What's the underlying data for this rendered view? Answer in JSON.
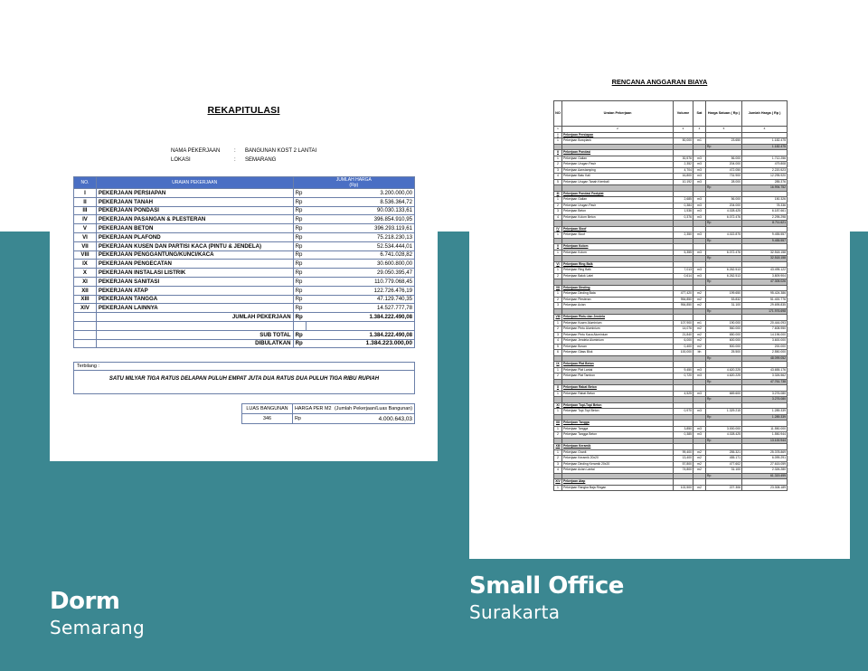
{
  "background": {
    "top": "#ffffff",
    "band": "#3b8791"
  },
  "doc1": {
    "title": "REKAPITULASI",
    "info": [
      {
        "key": "NAMA PEKERJAAN",
        "sep": ":",
        "value": "BANGUNAN KOST 2 LANTAI"
      },
      {
        "key": "LOKASI",
        "sep": ":",
        "value": "SEMARANG"
      }
    ],
    "headers": {
      "no": "NO.",
      "desc": "URAIAN PEKERJAAN",
      "amount": "JUMLAH HARGA",
      "amount_unit": "(Rp)"
    },
    "items": [
      {
        "no": "I",
        "desc": "PEKERJAAN PERSIAPAN",
        "rp": "Rp",
        "value": "3.200.000,00"
      },
      {
        "no": "II",
        "desc": "PEKERJAAN TANAH",
        "rp": "Rp",
        "value": "8.536.364,72"
      },
      {
        "no": "III",
        "desc": "PEKERJAAN PONDASI",
        "rp": "Rp",
        "value": "90.030.133,61"
      },
      {
        "no": "IV",
        "desc": "PEKERJAAN PASANGAN & PLESTERAN",
        "rp": "Rp",
        "value": "396.854.910,95"
      },
      {
        "no": "V",
        "desc": "PEKERJAAN BETON",
        "rp": "Rp",
        "value": "396.293.119,61"
      },
      {
        "no": "VI",
        "desc": "PEKERJAAN PLAFOND",
        "rp": "Rp",
        "value": "75.218.230,13"
      },
      {
        "no": "VII",
        "desc": "PEKERJAAN KUSEN DAN PARTISI KACA (PINTU & JENDELA)",
        "rp": "Rp",
        "value": "52.534.444,01"
      },
      {
        "no": "VIII",
        "desc": "PEKERJAAN PENGGANTUNG/KUNCI/KACA",
        "rp": "Rp",
        "value": "6.741.028,82"
      },
      {
        "no": "IX",
        "desc": "PEKERJAAN PENGECATAN",
        "rp": "Rp",
        "value": "30.600.800,00"
      },
      {
        "no": "X",
        "desc": "PEKERJAAN INSTALASI LISTRIK",
        "rp": "Rp",
        "value": "29.050.395,47"
      },
      {
        "no": "XI",
        "desc": "PEKERJAAN SANITASI",
        "rp": "Rp",
        "value": "110.779.068,45"
      },
      {
        "no": "XII",
        "desc": "PEKERJAAN ATAP",
        "rp": "Rp",
        "value": "122.726.476,19"
      },
      {
        "no": "XIII",
        "desc": "PEKERJAAN TANGGA",
        "rp": "Rp",
        "value": "47.129.740,35"
      },
      {
        "no": "XIV",
        "desc": "PEKERJAAN LAINNYA",
        "rp": "Rp",
        "value": "14.527.777,78"
      }
    ],
    "jumlah_label": "JUMLAH PEKERJAAN",
    "jumlah_rp": "Rp",
    "jumlah_value": "1.384.222.490,08",
    "subtotal_label": "SUB TOTAL",
    "subtotal_rp": "Rp",
    "subtotal_value": "1.384.222.490,08",
    "dibulatkan_label": "DIBULATKAN",
    "dibulatkan_rp": "Rp",
    "dibulatkan_value": "1.384.223.000,00",
    "terbilang_label": "Terbilang :",
    "terbilang_text": "SATU MILYAR TIGA RATUS DELAPAN PULUH EMPAT JUTA DUA RATUS DUA PULUH TIGA RIBU RUPIAH",
    "luas_label": "LUAS BANGUNAN",
    "luas_value": "346",
    "harga_m2_label": "HARGA PER M2",
    "harga_m2_note": "(Jumlah Pekerjaan/Luas Bangunan)",
    "harga_m2_rp": "Rp",
    "harga_m2_value": "4.000.643,03"
  },
  "doc2": {
    "title": "RENCANA ANGGARAN BIAYA",
    "headers": [
      "NO",
      "Uraian Pekerjaan",
      "Volume",
      "Sat",
      "Harga Satuan ( Rp )",
      "Jumlah Harga ( Rp )"
    ],
    "col_index": [
      "1",
      "2",
      "3",
      "4",
      "5",
      "6"
    ],
    "rows": [
      {
        "t": "sec",
        "no": "I",
        "d": "Pekerjaan Persiapan"
      },
      {
        "t": "item",
        "no": "1",
        "d": "Pekerjaan Bowplank",
        "v": "50,000",
        "s": "m1",
        "p": "23.650",
        "j": "1.182.475"
      },
      {
        "t": "sub",
        "j": "1.182.475"
      },
      {
        "t": "sec",
        "no": "II",
        "d": "Pekerjaan Pondasi"
      },
      {
        "t": "item",
        "no": "1",
        "d": "Pekerjaan Galian",
        "v": "30,576",
        "s": "m3",
        "p": "56.000",
        "j": "1.712.256"
      },
      {
        "t": "item",
        "no": "2",
        "d": "Pekerjaan Urugan Pasir",
        "v": "2,352",
        "s": "m3",
        "p": "204.000",
        "j": "479.808"
      },
      {
        "t": "item",
        "no": "3",
        "d": "Pekerjaan Aanstamping",
        "v": "4,704",
        "s": "m3",
        "p": "472.050",
        "j": "2.220.523"
      },
      {
        "t": "item",
        "no": "4",
        "d": "Pekerjaan Batu Kali",
        "v": "16,800",
        "s": "m3",
        "p": "731.900",
        "j": "12.295.920"
      },
      {
        "t": "item",
        "no": "5",
        "d": "Pekerjaan Urugan Tanah Kembali",
        "v": "10,192",
        "s": "m3",
        "p": "28.000",
        "j": "285.376"
      },
      {
        "t": "sub",
        "j": "16.994.752"
      },
      {
        "t": "sec",
        "no": "III",
        "d": "Pekerjaan Pondasi Footplat"
      },
      {
        "t": "item",
        "no": "1",
        "d": "Pekerjaan Galian",
        "v": "2,685",
        "s": "m3",
        "p": "56.000",
        "j": "150.326"
      },
      {
        "t": "item",
        "no": "2",
        "d": "Pekerjaan Urugan Pasir",
        "v": "0,384",
        "s": "m3",
        "p": "204.000",
        "j": "78.336"
      },
      {
        "t": "item",
        "no": "3",
        "d": "Pekerjaan Beton",
        "v": "1,536",
        "s": "m3",
        "p": "4.028.425",
        "j": "6.187.661"
      },
      {
        "t": "item",
        "no": "4",
        "d": "Pekerjaan Kolom Beton",
        "v": "0,376",
        "s": "m3",
        "p": "6.072.476",
        "j": "2.295.298"
      },
      {
        "t": "sub",
        "j": "8.711.621"
      },
      {
        "t": "sec",
        "no": "IV",
        "d": "Pekerjaan Sloof"
      },
      {
        "t": "item",
        "no": "1",
        "d": "Pekerjaan Sloof",
        "v": "2,350",
        "s": "m3",
        "p": "4.022.875",
        "j": "9.455.557"
      },
      {
        "t": "sub",
        "j": "9.455.557"
      },
      {
        "t": "sec",
        "no": "V",
        "d": "Pekerjaan Kolom"
      },
      {
        "t": "item",
        "no": "1",
        "d": "Pekerjaan Kolom",
        "v": "5,355",
        "s": "m3",
        "p": "6.072.476",
        "j": "32.518.158"
      },
      {
        "t": "sub",
        "j": "32.518.158"
      },
      {
        "t": "sec",
        "no": "VI",
        "d": "Pekerjaan Ring Balk"
      },
      {
        "t": "item",
        "no": "1",
        "d": "Pekerjaan Ring Balk",
        "v": "7,013",
        "s": "m3",
        "p": "6.262.513",
        "j": "43.495.122"
      },
      {
        "t": "item",
        "no": "2",
        "d": "Pekerjaan Balok Latei",
        "v": "0,614",
        "s": "m3",
        "p": "6.262.513",
        "j": "3.809.904"
      },
      {
        "t": "sub",
        "j": "47.305.026"
      },
      {
        "t": "sec",
        "no": "VII",
        "d": "Pekerjaan Dinding"
      },
      {
        "t": "item",
        "no": "1",
        "d": "Pekerjaan Dinding Bata",
        "v": "477,420",
        "s": "m2",
        "p": "199.650",
        "j": "95.424.386"
      },
      {
        "t": "item",
        "no": "2",
        "d": "Pekerjaan Plesteran",
        "v": "954,850",
        "s": "m2",
        "p": "53.832",
        "j": "51.400.776"
      },
      {
        "t": "item",
        "no": "3",
        "d": "Pekerjaan Acian",
        "v": "954,850",
        "s": "m2",
        "p": "31.100",
        "j": "29.695.835"
      },
      {
        "t": "sub",
        "j": "171.976.698"
      },
      {
        "t": "sec",
        "no": "VIII",
        "d": "Pekerjaan Pintu dan Jendela"
      },
      {
        "t": "item",
        "no": "1",
        "d": "Pekerjaan Kusen Aluminium",
        "v": "107,900",
        "s": "m1",
        "p": "190.000",
        "j": "20.444.093"
      },
      {
        "t": "item",
        "no": "2",
        "d": "Pekerjaan Pintu Aluminium",
        "v": "14,076",
        "s": "m2",
        "p": "560.000",
        "j": "7.608.950"
      },
      {
        "t": "item",
        "no": "3",
        "d": "Pekerjaan Pintu Kaca Aluminium",
        "v": "21,840",
        "s": "m2",
        "p": "650.000",
        "j": "14.196.000"
      },
      {
        "t": "item",
        "no": "4",
        "d": "Pekerjaan Jendela Aluminium",
        "v": "6,000",
        "s": "m2",
        "p": "600.000",
        "j": "3.600.000"
      },
      {
        "t": "item",
        "no": "5",
        "d": "Pekerjaan Bovan",
        "v": "0,400",
        "s": "m2",
        "p": "500.000",
        "j": "200.000"
      },
      {
        "t": "item",
        "no": "6",
        "d": "Pekerjaan Glass Blok",
        "v": "100,000",
        "s": "bh",
        "p": "25.500",
        "j": "2.550.000"
      },
      {
        "t": "sub",
        "j": "48.099.052"
      },
      {
        "t": "sec",
        "no": "IX",
        "d": "Pekerjaan Plat Beton"
      },
      {
        "t": "item",
        "no": "1",
        "d": "Pekerjaan Plat Lantai",
        "v": "9,450",
        "s": "m3",
        "p": "4.620.225",
        "j": "43.655.176"
      },
      {
        "t": "item",
        "no": "2",
        "d": "Pekerjaan Plat Tambon",
        "v": "0,720",
        "s": "m3",
        "p": "4.620.225",
        "j": "3.326.562"
      },
      {
        "t": "sub",
        "j": "47.761.738"
      },
      {
        "t": "sec",
        "no": "X",
        "d": "Pekerjaan Rabat Beton"
      },
      {
        "t": "item",
        "no": "1",
        "d": "Pekerjaan Rabat Beton",
        "v": "4,525",
        "s": "m3",
        "p": "669.600",
        "j": "3.276.080"
      },
      {
        "t": "sub",
        "j": "3.276.080"
      },
      {
        "t": "sec",
        "no": "XI",
        "d": "Pekerjaan Topi-Topi Beton"
      },
      {
        "t": "item",
        "no": "1",
        "d": "Pekerjaan Topi-Topi Beton",
        "v": "0,970",
        "s": "m3",
        "p": "1.329.215",
        "j": "1.289.339"
      },
      {
        "t": "sub",
        "j": "1.289.339"
      },
      {
        "t": "sec",
        "no": "XII",
        "d": "Pekerjaan Tangga"
      },
      {
        "t": "item",
        "no": "1",
        "d": "Pekerjaan Tangga",
        "v": "3,850",
        "s": "m3",
        "p": "3.000.000",
        "j": "11.550.000"
      },
      {
        "t": "item",
        "no": "2",
        "d": "Pekerjaan Tangga Beton",
        "v": "0,385",
        "s": "m3",
        "p": "4.028.425",
        "j": "1.550.944"
      },
      {
        "t": "sub",
        "j": "13.100.944"
      },
      {
        "t": "sec",
        "no": "XIII",
        "d": "Pekerjaan Keramik"
      },
      {
        "t": "item",
        "no": "1",
        "d": "Pekerjaan Granit",
        "v": "99,400",
        "s": "m2",
        "p": "255.321",
        "j": "25.378.869"
      },
      {
        "t": "item",
        "no": "2",
        "d": "Pekerjaan Keramik 20x20",
        "v": "13,400",
        "s": "m2",
        "p": "455.171",
        "p2": "",
        "j": "6.099.291"
      },
      {
        "t": "item",
        "no": "3",
        "d": "Pekerjaan Dinding Keramik 20x20",
        "v": "57,800",
        "s": "m2",
        "p": "477.602",
        "j": "27.615.059"
      },
      {
        "t": "item",
        "no": "4",
        "d": "Pekerjaan Acian Lantai",
        "v": "74,800",
        "s": "m2",
        "p": "31.100",
        "j": "2.326.280"
      },
      {
        "t": "sub",
        "j": "61.319.499"
      },
      {
        "t": "sec",
        "no": "XIV",
        "d": "Pekerjaan Atap"
      },
      {
        "t": "item",
        "no": "1",
        "d": "Pekerjaan Rangka Baja Ringan",
        "v": "102,500",
        "s": "m2",
        "p": "227.306",
        "j": "23.308.189"
      }
    ]
  },
  "captions": [
    {
      "name": "Dorm",
      "city": "Semarang"
    },
    {
      "name": "Small Office",
      "city": "Surakarta"
    }
  ]
}
